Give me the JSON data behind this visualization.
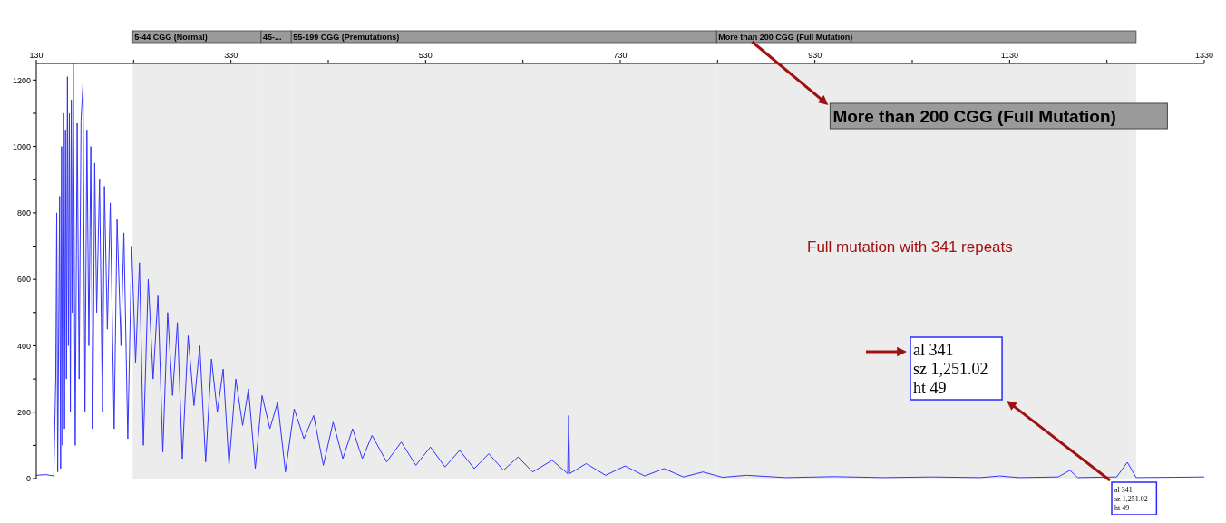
{
  "chart_data": {
    "type": "line",
    "x": [
      130,
      140,
      148,
      150,
      151,
      152,
      154,
      155,
      156,
      157,
      158,
      159,
      160,
      161,
      162,
      163,
      164,
      165,
      166,
      167,
      168,
      170,
      172,
      174,
      176,
      178,
      180,
      182,
      184,
      186,
      188,
      190,
      192,
      195,
      198,
      200,
      203,
      206,
      210,
      213,
      217,
      220,
      224,
      228,
      232,
      236,
      240,
      245,
      250,
      255,
      260,
      265,
      270,
      275,
      280,
      286,
      292,
      298,
      304,
      310,
      316,
      322,
      328,
      335,
      342,
      348,
      355,
      362,
      370,
      378,
      386,
      395,
      405,
      415,
      425,
      435,
      445,
      455,
      465,
      475,
      490,
      505,
      520,
      535,
      550,
      565,
      580,
      595,
      610,
      625,
      640,
      660,
      676,
      677,
      678,
      695,
      715,
      735,
      755,
      775,
      795,
      815,
      835,
      860,
      900,
      950,
      1000,
      1050,
      1100,
      1120,
      1140,
      1180,
      1192,
      1200,
      1240,
      1251.02,
      1260,
      1300,
      1330
    ],
    "series": [
      {
        "color": "#3333ff",
        "values": [
          10,
          12,
          8,
          300,
          800,
          20,
          850,
          30,
          1000,
          100,
          1100,
          150,
          1050,
          300,
          1210,
          400,
          1100,
          200,
          1140,
          500,
          1250,
          100,
          1070,
          300,
          1080,
          1190,
          200,
          1050,
          400,
          1000,
          150,
          950,
          500,
          900,
          200,
          880,
          450,
          830,
          150,
          780,
          400,
          740,
          120,
          700,
          350,
          650,
          100,
          600,
          300,
          550,
          80,
          500,
          250,
          470,
          60,
          430,
          220,
          400,
          50,
          360,
          200,
          330,
          40,
          300,
          160,
          270,
          30,
          250,
          150,
          230,
          20,
          210,
          120,
          190,
          40,
          170,
          60,
          150,
          60,
          130,
          50,
          110,
          40,
          95,
          35,
          85,
          30,
          75,
          25,
          65,
          20,
          55,
          15,
          190,
          15,
          45,
          10,
          38,
          8,
          30,
          5,
          20,
          4,
          10,
          3,
          6,
          3,
          5,
          3,
          8,
          3,
          5,
          25,
          3,
          5,
          49,
          3,
          4,
          5
        ]
      }
    ],
    "xlim": [
      130,
      1330
    ],
    "xticks": [
      130,
      {
        "value": 230,
        "label": null
      },
      330,
      {
        "value": 430,
        "label": null
      },
      530,
      {
        "value": 630,
        "label": null
      },
      730,
      {
        "value": 830,
        "label": null
      },
      930,
      {
        "value": 1030,
        "label": null
      },
      1130,
      {
        "value": 1230,
        "label": null
      },
      1330
    ],
    "ylim": [
      0,
      1250
    ],
    "yticks": [
      0,
      {
        "value": 100,
        "label": null
      },
      200,
      {
        "value": 300,
        "label": null
      },
      400,
      {
        "value": 500,
        "label": null
      },
      600,
      {
        "value": 700,
        "label": null
      },
      800,
      {
        "value": 900,
        "label": null
      },
      1000,
      {
        "value": 1100,
        "label": null
      },
      1200
    ],
    "marker": "none",
    "line_style": "solid",
    "bands": [
      {
        "axis": "x",
        "from": 229,
        "to": 361,
        "label": "5-44 CGG (Normal)",
        "color": "#ececec"
      },
      {
        "axis": "x",
        "from": 361,
        "to": 392,
        "label": "45-...",
        "color": "#ececec"
      },
      {
        "axis": "x",
        "from": 392,
        "to": 829,
        "label": "55-199 CGG (Premutations)",
        "color": "#ececec"
      },
      {
        "axis": "x",
        "from": 829,
        "to": 1260,
        "label": "More than 200 CGG (Full Mutation)",
        "color": "#ececec"
      }
    ],
    "annotations": [
      "More than 200 CGG (Full Mutation)",
      "Full mutation with 341 repeats",
      "al 341\nsz 1,251.02\nht 49",
      "al 341\nsz 1,251.02\nht 49"
    ]
  }
}
